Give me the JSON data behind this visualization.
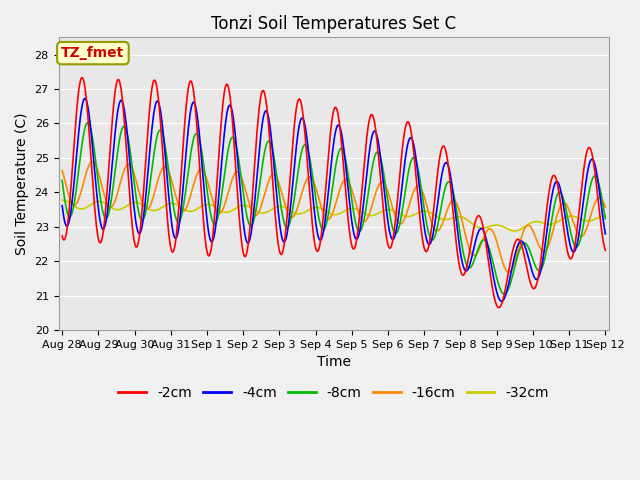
{
  "title": "Tonzi Soil Temperatures Set C",
  "xlabel": "Time",
  "ylabel": "Soil Temperature (C)",
  "ylim": [
    20.0,
    28.5
  ],
  "yticks": [
    20.0,
    21.0,
    22.0,
    23.0,
    24.0,
    25.0,
    26.0,
    27.0,
    28.0
  ],
  "xtick_labels": [
    "Aug 28",
    "Aug 29",
    "Aug 30",
    "Aug 31",
    "Sep 1",
    "Sep 2",
    "Sep 3",
    "Sep 4",
    "Sep 5",
    "Sep 6",
    "Sep 7",
    "Sep 8",
    "Sep 9",
    "Sep 10",
    "Sep 11",
    "Sep 12"
  ],
  "legend_label": "TZ_fmet",
  "series_labels": [
    "-2cm",
    "-4cm",
    "-8cm",
    "-16cm",
    "-32cm"
  ],
  "series_colors": [
    "#ff0000",
    "#0000ff",
    "#00bb00",
    "#ff8800",
    "#cccc00"
  ],
  "plot_bg": "#e8e8e8",
  "fig_bg": "#f0f0f0",
  "title_fontsize": 12,
  "axis_label_fontsize": 10,
  "tick_fontsize": 8,
  "legend_fontsize": 10,
  "annotation_fontsize": 10,
  "linewidth": 1.2
}
